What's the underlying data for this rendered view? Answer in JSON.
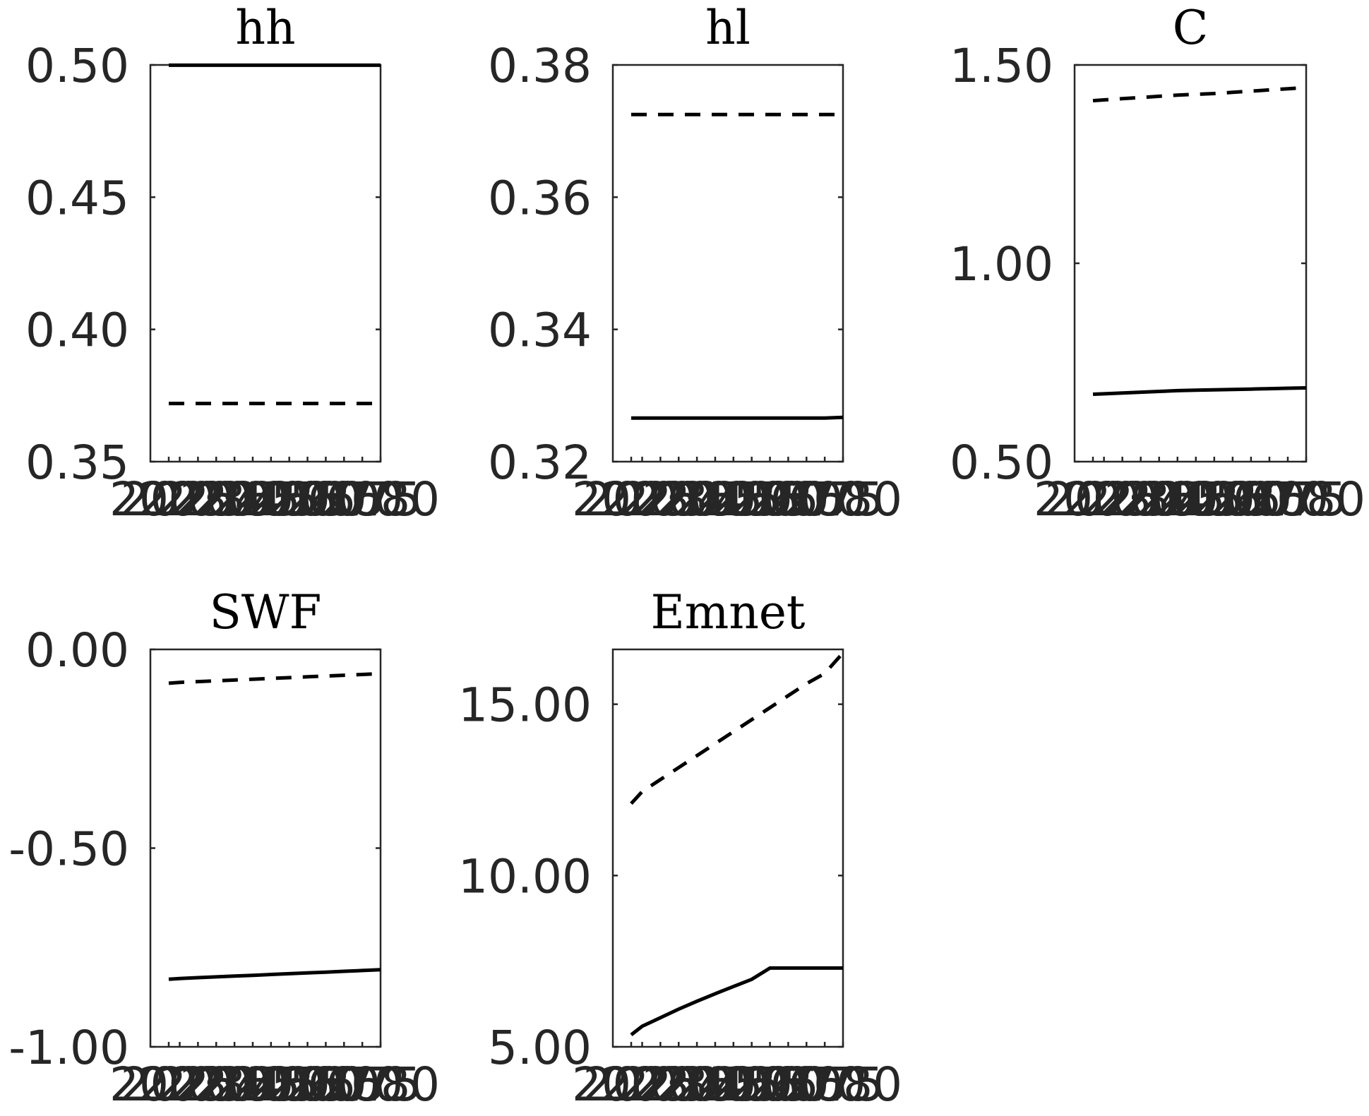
{
  "chart_data": [
    {
      "type": "line",
      "title": "hh",
      "x": [
        2022,
        2025,
        2030,
        2035,
        2040,
        2045,
        2050,
        2055,
        2060,
        2065,
        2070,
        2075,
        2080
      ],
      "xtick_labels": [
        "2022",
        "2025",
        "2030",
        "2035",
        "2040",
        "2045",
        "2050",
        "2055",
        "2060",
        "2065",
        "2070",
        "2075",
        "2080"
      ],
      "ylim": [
        0.35,
        0.5
      ],
      "yticks": [
        0.35,
        0.4,
        0.45,
        0.5
      ],
      "ytick_labels": [
        "0.35",
        "0.40",
        "0.45",
        "0.50"
      ],
      "series": [
        {
          "style": "solid",
          "values": [
            0.4999,
            0.4999,
            0.4999,
            0.4999,
            0.4999,
            0.4999,
            0.4999,
            0.4999,
            0.4999,
            0.4999,
            0.4999,
            0.4999,
            0.4999
          ]
        },
        {
          "style": "dashed",
          "values": [
            0.372,
            0.372,
            0.372,
            0.372,
            0.372,
            0.372,
            0.372,
            0.372,
            0.372,
            0.372,
            0.372,
            0.372,
            0.372
          ]
        }
      ]
    },
    {
      "type": "line",
      "title": "hl",
      "x": [
        2022,
        2025,
        2030,
        2035,
        2040,
        2045,
        2050,
        2055,
        2060,
        2065,
        2070,
        2075,
        2080
      ],
      "xtick_labels": [
        "2022",
        "2025",
        "2030",
        "2035",
        "2040",
        "2045",
        "2050",
        "2055",
        "2060",
        "2065",
        "2070",
        "2075",
        "2080"
      ],
      "ylim": [
        0.32,
        0.38
      ],
      "yticks": [
        0.32,
        0.34,
        0.36,
        0.38
      ],
      "ytick_labels": [
        "0.32",
        "0.34",
        "0.36",
        "0.38"
      ],
      "series": [
        {
          "style": "solid",
          "values": [
            0.3266,
            0.3266,
            0.3266,
            0.3266,
            0.3266,
            0.3266,
            0.3266,
            0.3266,
            0.3266,
            0.3266,
            0.3266,
            0.3266,
            0.3267
          ]
        },
        {
          "style": "dashed",
          "values": [
            0.3725,
            0.3725,
            0.3725,
            0.3725,
            0.3725,
            0.3725,
            0.3725,
            0.3725,
            0.3725,
            0.3725,
            0.3725,
            0.3725,
            0.3725
          ]
        }
      ]
    },
    {
      "type": "line",
      "title": "C",
      "x": [
        2022,
        2025,
        2030,
        2035,
        2040,
        2045,
        2050,
        2055,
        2060,
        2065,
        2070,
        2075,
        2080
      ],
      "xtick_labels": [
        "2022",
        "2025",
        "2030",
        "2035",
        "2040",
        "2045",
        "2050",
        "2055",
        "2060",
        "2065",
        "2070",
        "2075",
        "2080"
      ],
      "ylim": [
        0.5,
        1.5
      ],
      "yticks": [
        0.5,
        1.0,
        1.5
      ],
      "ytick_labels": [
        "0.50",
        "1.00",
        "1.50"
      ],
      "series": [
        {
          "style": "solid",
          "values": [
            0.67,
            0.671,
            0.673,
            0.675,
            0.677,
            0.679,
            0.68,
            0.681,
            0.682,
            0.683,
            0.684,
            0.685,
            0.686
          ]
        },
        {
          "style": "dashed",
          "values": [
            1.41,
            1.412,
            1.415,
            1.418,
            1.421,
            1.424,
            1.426,
            1.428,
            1.431,
            1.434,
            1.437,
            1.44,
            1.443
          ]
        }
      ]
    },
    {
      "type": "line",
      "title": "SWF",
      "x": [
        2022,
        2025,
        2030,
        2035,
        2040,
        2045,
        2050,
        2055,
        2060,
        2065,
        2070,
        2075,
        2080
      ],
      "xtick_labels": [
        "2022",
        "2025",
        "2030",
        "2035",
        "2040",
        "2045",
        "2050",
        "2055",
        "2060",
        "2065",
        "2070",
        "2075",
        "2080"
      ],
      "ylim": [
        -1.0,
        0.0
      ],
      "yticks": [
        -1.0,
        -0.5,
        0.0
      ],
      "ytick_labels": [
        "-1.00",
        "-0.50",
        "0.00"
      ],
      "series": [
        {
          "style": "solid",
          "values": [
            -0.83,
            -0.828,
            -0.826,
            -0.824,
            -0.822,
            -0.82,
            -0.818,
            -0.816,
            -0.814,
            -0.812,
            -0.81,
            -0.808,
            -0.806
          ]
        },
        {
          "style": "dashed",
          "values": [
            -0.085,
            -0.083,
            -0.081,
            -0.079,
            -0.077,
            -0.075,
            -0.073,
            -0.071,
            -0.069,
            -0.067,
            -0.065,
            -0.063,
            -0.061
          ]
        }
      ]
    },
    {
      "type": "line",
      "title": "Emnet",
      "x": [
        2022,
        2025,
        2030,
        2035,
        2040,
        2045,
        2050,
        2055,
        2060,
        2065,
        2070,
        2075,
        2080
      ],
      "xtick_labels": [
        "2022",
        "2025",
        "2030",
        "2035",
        "2040",
        "2045",
        "2050",
        "2055",
        "2060",
        "2065",
        "2070",
        "2075",
        "2080"
      ],
      "ylim": [
        5.0,
        16.6
      ],
      "yticks": [
        5.0,
        10.0,
        15.0
      ],
      "ytick_labels": [
        "5.00",
        "10.00",
        "15.00"
      ],
      "series": [
        {
          "style": "solid",
          "values": [
            5.35,
            5.6,
            5.85,
            6.1,
            6.33,
            6.55,
            6.76,
            6.97,
            7.3,
            7.3,
            7.3,
            7.3,
            7.3
          ]
        },
        {
          "style": "dashed",
          "values": [
            12.1,
            12.45,
            12.8,
            13.15,
            13.5,
            13.85,
            14.2,
            14.55,
            14.9,
            15.25,
            15.6,
            15.9,
            16.5
          ]
        }
      ]
    }
  ]
}
